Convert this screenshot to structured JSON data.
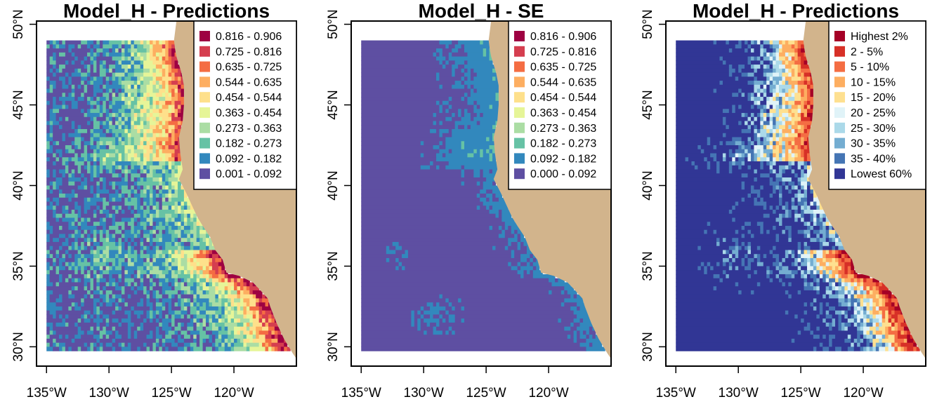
{
  "colors": {
    "land": "#D2B48C",
    "ocean_background": "#FFFFFF",
    "frame": "#000000"
  },
  "axes": {
    "x_ticks": [
      "135°W",
      "130°W",
      "125°W",
      "120°W"
    ],
    "x_values": [
      -135,
      -130,
      -125,
      -120
    ],
    "y_ticks": [
      "30°N",
      "35°N",
      "40°N",
      "45°N",
      "50°N"
    ],
    "y_values": [
      30,
      35,
      40,
      45,
      50
    ],
    "xlim": [
      -135.8,
      -115.0
    ],
    "ylim": [
      28.8,
      50.2
    ]
  },
  "chart_data": [
    {
      "type": "heatmap",
      "title": "Model_H - Predictions",
      "data_extent": {
        "lon": [
          -135.0,
          -115.5
        ],
        "lat": [
          29.9,
          49.0
        ]
      },
      "legend": {
        "placement": "top-right",
        "entries": [
          {
            "label": "0.816 - 0.906",
            "color": "#9E0142"
          },
          {
            "label": "0.725 - 0.816",
            "color": "#D53E4F"
          },
          {
            "label": "0.635 - 0.725",
            "color": "#F46D43"
          },
          {
            "label": "0.544 - 0.635",
            "color": "#FDAE61"
          },
          {
            "label": "0.454 - 0.544",
            "color": "#FEE08B"
          },
          {
            "label": "0.363 - 0.454",
            "color": "#E6F598"
          },
          {
            "label": "0.273 - 0.363",
            "color": "#ABDDA4"
          },
          {
            "label": "0.182 - 0.273",
            "color": "#66C2A5"
          },
          {
            "label": "0.092 - 0.182",
            "color": "#3288BD"
          },
          {
            "label": "0.001 - 0.092",
            "color": "#5E4FA2"
          }
        ]
      }
    },
    {
      "type": "heatmap",
      "title": "Model_H - SE",
      "data_extent": {
        "lon": [
          -135.0,
          -115.5
        ],
        "lat": [
          29.9,
          49.0
        ]
      },
      "legend": {
        "placement": "top-right",
        "entries": [
          {
            "label": "0.816 - 0.906",
            "color": "#9E0142"
          },
          {
            "label": "0.725 - 0.816",
            "color": "#D53E4F"
          },
          {
            "label": "0.635 - 0.725",
            "color": "#F46D43"
          },
          {
            "label": "0.544 - 0.635",
            "color": "#FDAE61"
          },
          {
            "label": "0.454 - 0.544",
            "color": "#FEE08B"
          },
          {
            "label": "0.363 - 0.454",
            "color": "#E6F598"
          },
          {
            "label": "0.273 - 0.363",
            "color": "#ABDDA4"
          },
          {
            "label": "0.182 - 0.273",
            "color": "#66C2A5"
          },
          {
            "label": "0.092 - 0.182",
            "color": "#3288BD"
          },
          {
            "label": "0.000 - 0.092",
            "color": "#5E4FA2"
          }
        ]
      }
    },
    {
      "type": "heatmap",
      "title": "Model_H - Predictions",
      "data_extent": {
        "lon": [
          -135.0,
          -115.5
        ],
        "lat": [
          29.9,
          49.0
        ]
      },
      "legend": {
        "placement": "top-right",
        "entries": [
          {
            "label": "Highest 2%",
            "color": "#A50026"
          },
          {
            "label": "2 - 5%",
            "color": "#D73027"
          },
          {
            "label": "5 - 10%",
            "color": "#F46D43"
          },
          {
            "label": "10 - 15%",
            "color": "#FDAE61"
          },
          {
            "label": "15 - 20%",
            "color": "#FEE090"
          },
          {
            "label": "20 - 25%",
            "color": "#E0F3F8"
          },
          {
            "label": "25 - 30%",
            "color": "#ABD9E9"
          },
          {
            "label": "30 - 35%",
            "color": "#74ADD1"
          },
          {
            "label": "35 - 40%",
            "color": "#4575B4"
          },
          {
            "label": "Lowest 60%",
            "color": "#313695"
          }
        ]
      }
    }
  ]
}
